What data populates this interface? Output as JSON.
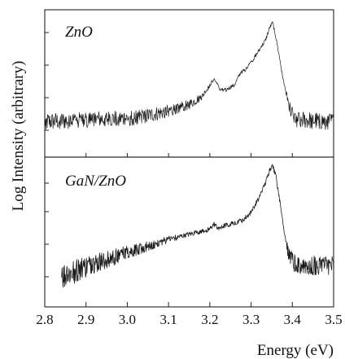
{
  "chart_data": {
    "type": "line",
    "xlabel": "Energy (eV)",
    "ylabel": "Log Intensity (arbitrary)",
    "xlim": [
      2.8,
      3.5
    ],
    "x_ticks": [
      "2.8",
      "2.9",
      "3.0",
      "3.1",
      "3.2",
      "3.3",
      "3.4",
      "3.5"
    ],
    "grid": false,
    "y_scale": "log (arbitrary units, no tick labels)",
    "panels": [
      {
        "label": "ZnO",
        "noise_level": 0.45,
        "series": [
          {
            "x": [
              2.8,
              2.9,
              3.0,
              3.05,
              3.1,
              3.15,
              3.18,
              3.195,
              3.21,
              3.225,
              3.24,
              3.26,
              3.275,
              3.285,
              3.3,
              3.32,
              3.335,
              3.345,
              3.352,
              3.358,
              3.37,
              3.38,
              3.395,
              3.41,
              3.5
            ],
            "y": [
              0.2,
              0.22,
              0.23,
              0.25,
              0.29,
              0.34,
              0.4,
              0.47,
              0.55,
              0.46,
              0.46,
              0.5,
              0.6,
              0.62,
              0.68,
              0.78,
              0.86,
              0.96,
              1.0,
              0.92,
              0.7,
              0.5,
              0.3,
              0.22,
              0.2
            ]
          }
        ]
      },
      {
        "label": "GaN/ZnO",
        "noise_level": 0.6,
        "series": [
          {
            "x": [
              2.84,
              2.9,
              3.0,
              3.1,
              3.15,
              3.2,
              3.21,
              3.22,
              3.25,
              3.28,
              3.3,
              3.32,
              3.335,
              3.345,
              3.352,
              3.36,
              3.37,
              3.38,
              3.39,
              3.4,
              3.42,
              3.5
            ],
            "y": [
              0.14,
              0.22,
              0.33,
              0.43,
              0.47,
              0.51,
              0.55,
              0.52,
              0.55,
              0.58,
              0.64,
              0.76,
              0.87,
              0.97,
              1.0,
              0.93,
              0.72,
              0.5,
              0.33,
              0.26,
              0.24,
              0.22
            ]
          }
        ]
      }
    ]
  }
}
